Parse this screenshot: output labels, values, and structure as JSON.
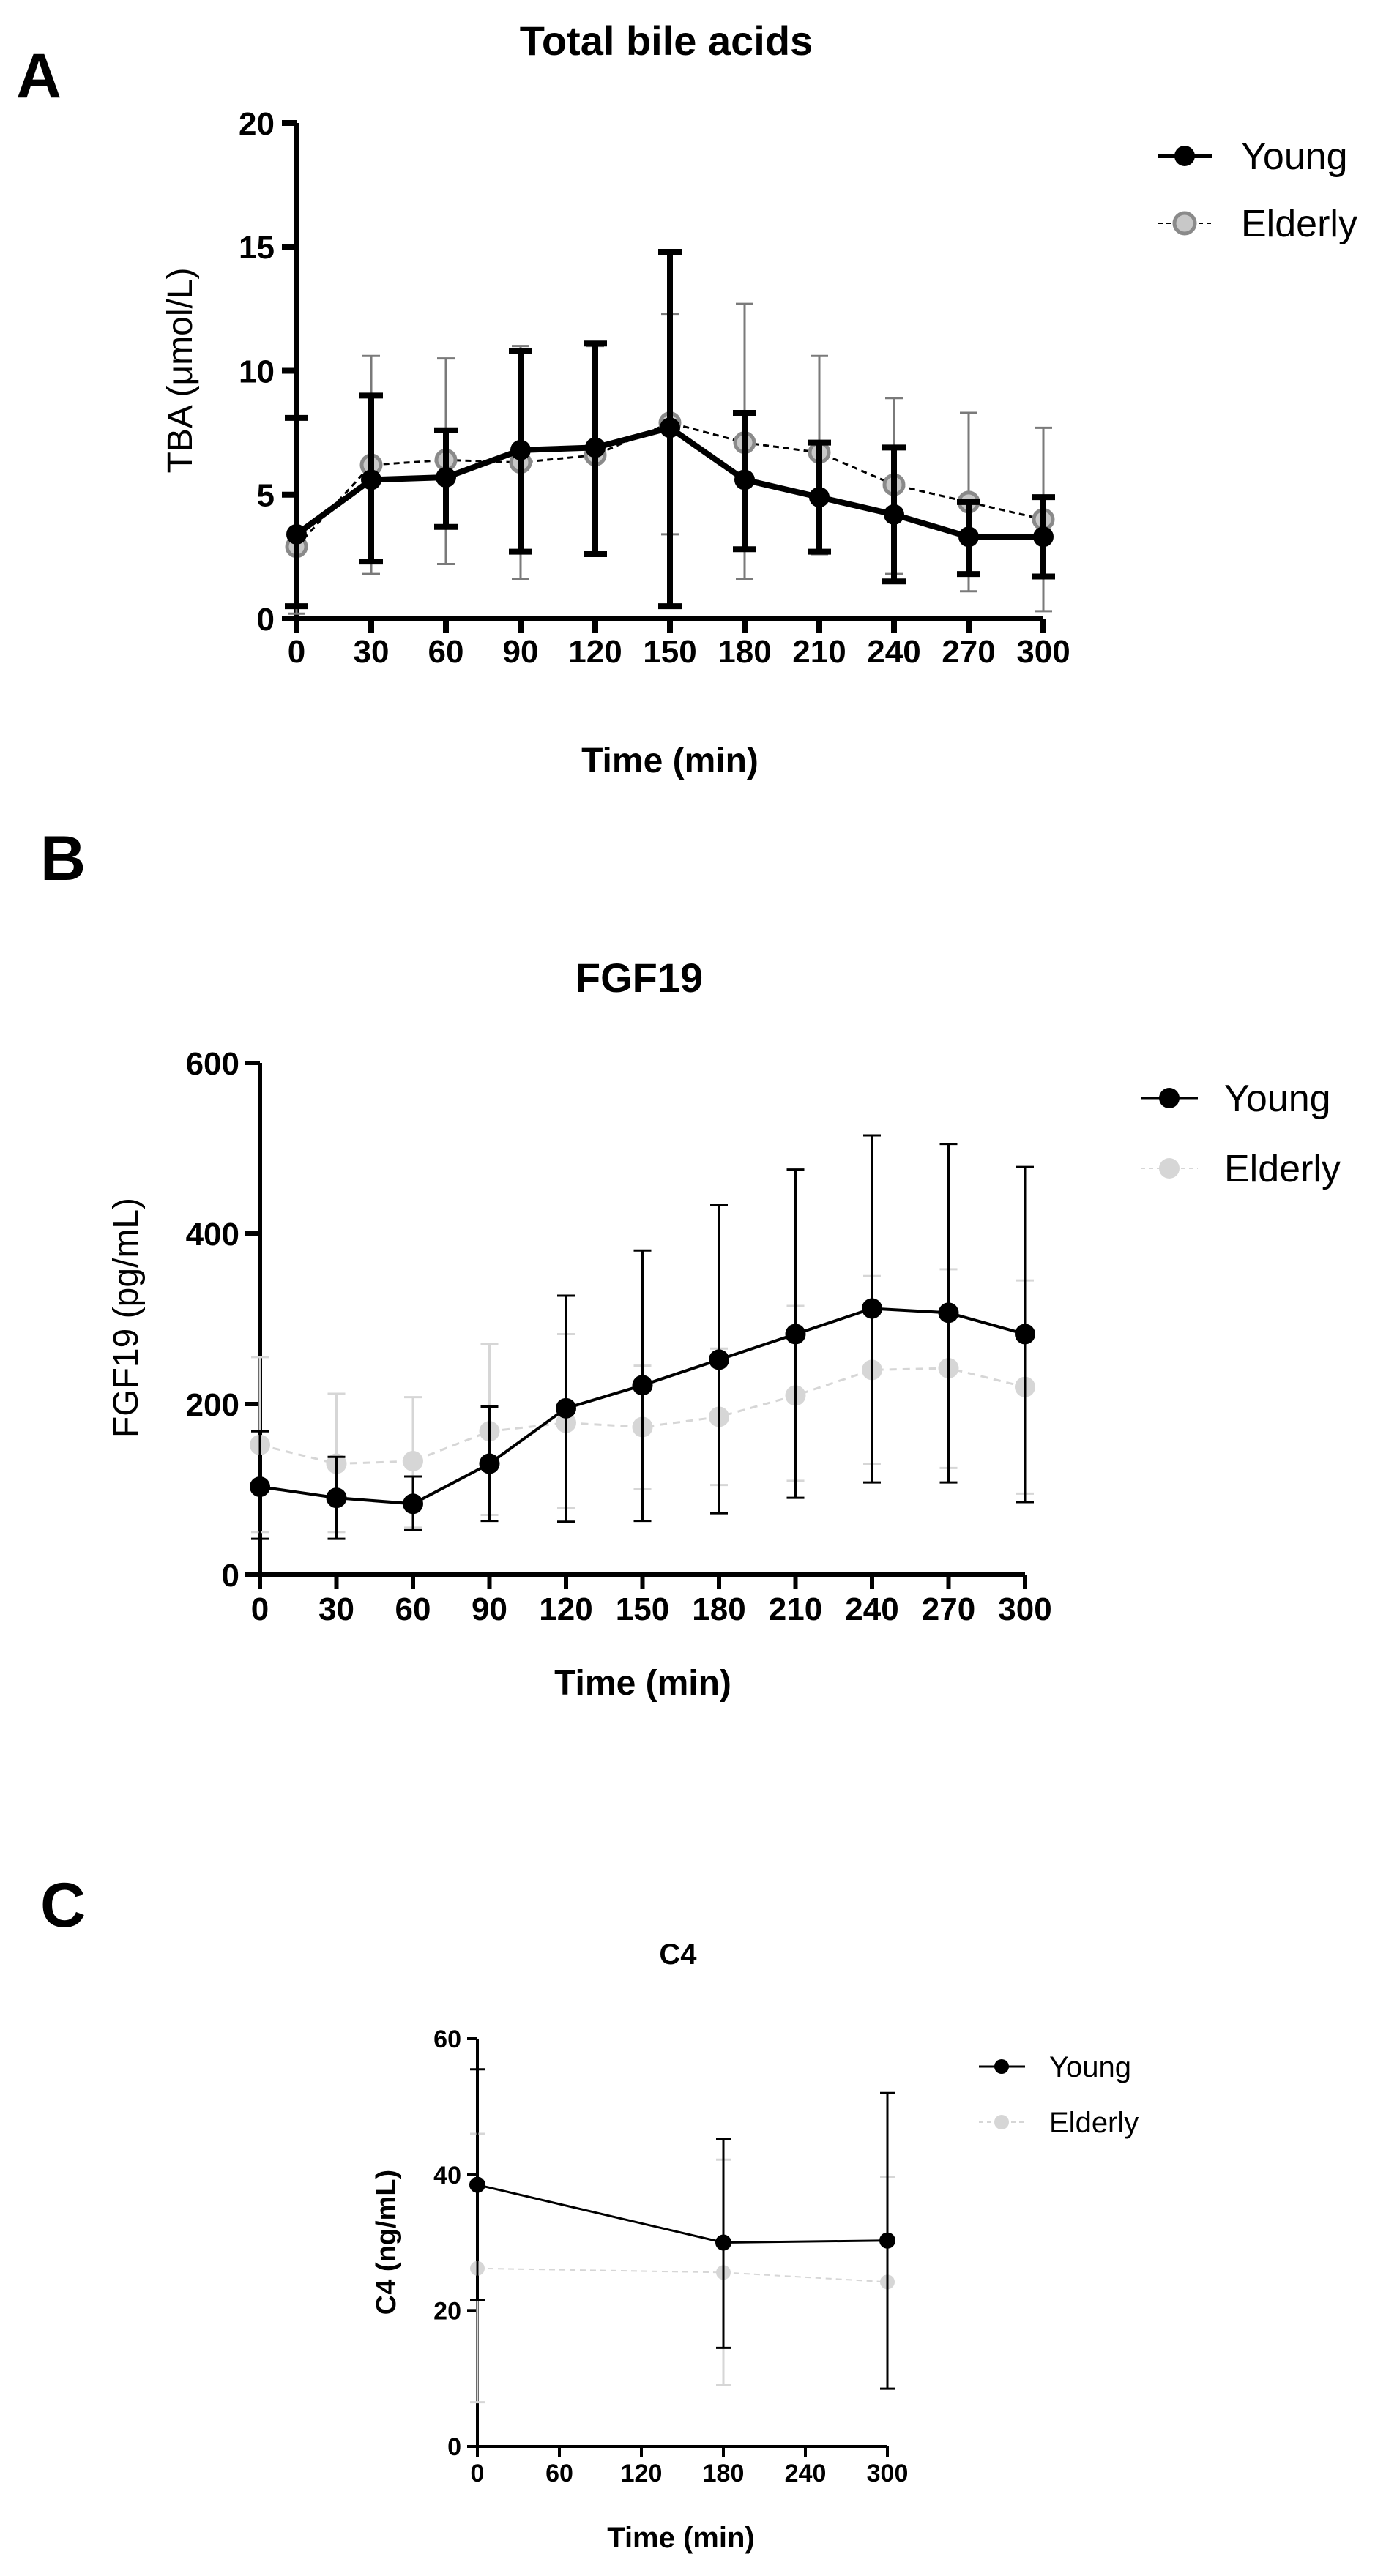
{
  "chart_data": [
    {
      "panel": "A",
      "type": "line",
      "title": "Total bile acids",
      "xlabel": "Time (min)",
      "ylabel": "TBA (μmol/L)",
      "xlim": [
        0,
        300
      ],
      "ylim": [
        0,
        20
      ],
      "xticks": [
        0,
        30,
        60,
        90,
        120,
        150,
        180,
        210,
        240,
        270,
        300
      ],
      "yticks": [
        0,
        5,
        10,
        15,
        20
      ],
      "x": [
        0,
        30,
        60,
        90,
        120,
        150,
        180,
        210,
        240,
        270,
        300
      ],
      "legend": "top-right",
      "series": [
        {
          "name": "Young",
          "color": "#000000",
          "style": "solid",
          "values": [
            3.4,
            5.6,
            5.7,
            6.8,
            6.9,
            7.7,
            5.6,
            4.9,
            4.2,
            3.3,
            3.3
          ],
          "err_low": [
            0.5,
            2.3,
            3.7,
            2.7,
            2.6,
            0.5,
            2.8,
            2.7,
            1.5,
            1.8,
            1.7
          ],
          "err_high": [
            8.1,
            9.0,
            7.6,
            10.8,
            11.1,
            14.8,
            8.3,
            7.1,
            6.9,
            4.7,
            4.9
          ]
        },
        {
          "name": "Elderly",
          "color": "#a8a8a8",
          "style": "dashed",
          "values": [
            2.9,
            6.2,
            6.4,
            6.3,
            6.6,
            7.9,
            7.1,
            6.7,
            5.4,
            4.7,
            4.0
          ],
          "err_low": [
            0.2,
            1.8,
            2.2,
            1.6,
            2.6,
            3.4,
            1.6,
            2.6,
            1.8,
            1.1,
            0.3
          ],
          "err_high": [
            3.5,
            10.6,
            10.5,
            11.0,
            11.0,
            12.3,
            12.7,
            10.6,
            8.9,
            8.3,
            7.7
          ]
        }
      ]
    },
    {
      "panel": "B",
      "type": "line",
      "title": "FGF19",
      "xlabel": "Time (min)",
      "ylabel": "FGF19 (pg/mL)",
      "xlim": [
        0,
        300
      ],
      "ylim": [
        0,
        600
      ],
      "xticks": [
        0,
        30,
        60,
        90,
        120,
        150,
        180,
        210,
        240,
        270,
        300
      ],
      "yticks": [
        0,
        200,
        400,
        600
      ],
      "x": [
        0,
        30,
        60,
        90,
        120,
        150,
        180,
        210,
        240,
        270,
        300
      ],
      "legend": "top-right",
      "series": [
        {
          "name": "Young",
          "color": "#000000",
          "style": "solid",
          "values": [
            103,
            90,
            83,
            130,
            195,
            222,
            252,
            282,
            312,
            307,
            282
          ],
          "err_low": [
            42,
            42,
            52,
            63,
            62,
            63,
            72,
            90,
            108,
            108,
            85
          ],
          "err_high": [
            168,
            138,
            115,
            197,
            327,
            380,
            433,
            475,
            515,
            505,
            478
          ]
        },
        {
          "name": "Elderly",
          "color": "#d6d6d6",
          "style": "dashed",
          "values": [
            152,
            130,
            133,
            168,
            178,
            173,
            185,
            210,
            240,
            242,
            220
          ],
          "err_low": [
            50,
            50,
            55,
            70,
            78,
            100,
            105,
            110,
            130,
            125,
            95
          ],
          "err_high": [
            255,
            212,
            208,
            270,
            282,
            245,
            265,
            315,
            350,
            358,
            345
          ]
        }
      ]
    },
    {
      "panel": "C",
      "type": "line",
      "title": "C4",
      "xlabel": "Time (min)",
      "ylabel": "C4 (ng/mL)",
      "xlim": [
        0,
        300
      ],
      "ylim": [
        0,
        60
      ],
      "xticks": [
        0,
        60,
        120,
        180,
        240,
        300
      ],
      "yticks": [
        0,
        20,
        40,
        60
      ],
      "x": [
        0,
        180,
        300
      ],
      "legend": "top-right",
      "series": [
        {
          "name": "Young",
          "color": "#000000",
          "style": "solid",
          "values": [
            38.5,
            30,
            30.3
          ],
          "err_low": [
            21.5,
            14.5,
            8.5
          ],
          "err_high": [
            55.5,
            45.3,
            52
          ]
        },
        {
          "name": "Elderly",
          "color": "#d6d6d6",
          "style": "dashed",
          "values": [
            26.2,
            25.6,
            24.2
          ],
          "err_low": [
            6.5,
            9,
            8.5
          ],
          "err_high": [
            46,
            42.2,
            39.7
          ]
        }
      ]
    }
  ]
}
